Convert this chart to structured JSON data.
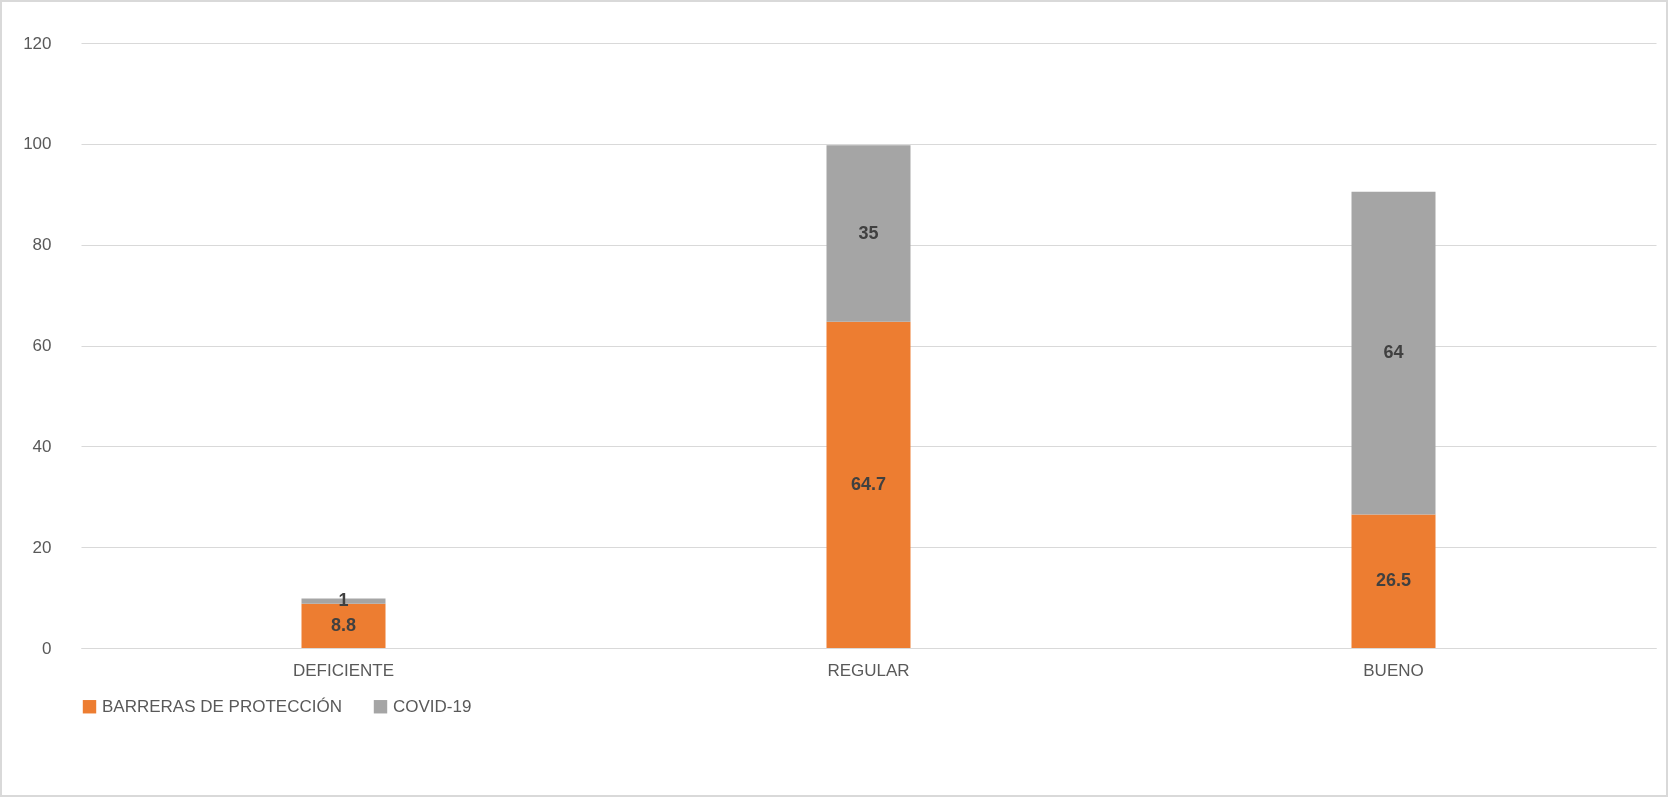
{
  "chart_data": {
    "type": "bar",
    "stacked": true,
    "categories": [
      "DEFICIENTE",
      "REGULAR",
      "BUENO"
    ],
    "series": [
      {
        "name": "BARRERAS DE PROTECCIÓN",
        "color": "#ed7d31",
        "values": [
          8.8,
          64.7,
          26.5
        ]
      },
      {
        "name": "COVID-19",
        "color": "#a5a5a5",
        "values": [
          1,
          35,
          64
        ]
      }
    ],
    "ylim": [
      0,
      120
    ],
    "yticks": [
      0,
      20,
      40,
      60,
      80,
      100,
      120
    ],
    "grid": "y",
    "legend": "bottom",
    "data_labels": true
  }
}
